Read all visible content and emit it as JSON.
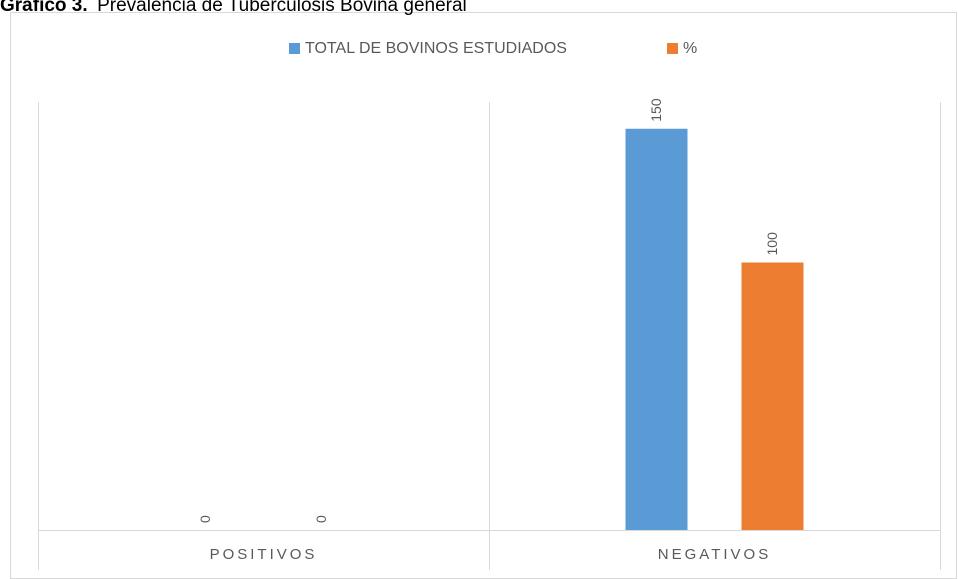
{
  "chart_data": {
    "type": "bar",
    "title": {
      "label": "Gráfico 3.",
      "text": "Prevalencia de Tuberculosis Bovina general"
    },
    "categories": [
      "POSITIVOS",
      "NEGATIVOS"
    ],
    "series": [
      {
        "name": "TOTAL DE BOVINOS ESTUDIADOS",
        "color": "#5b9bd5",
        "values": [
          0,
          150
        ]
      },
      {
        "name": "%",
        "color": "#ed7d31",
        "values": [
          0,
          100
        ]
      }
    ],
    "ylim": [
      0,
      160
    ],
    "legend": "top"
  }
}
